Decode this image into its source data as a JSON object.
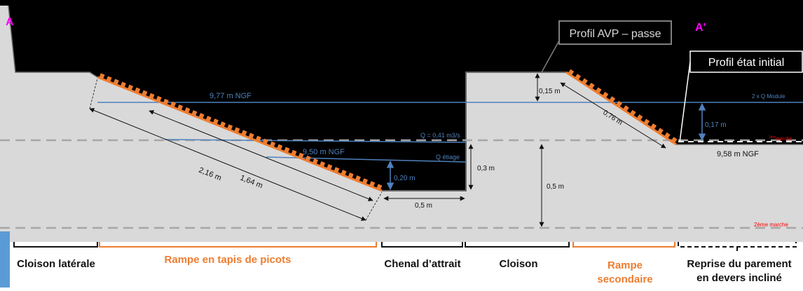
{
  "colors": {
    "sky": "#000000",
    "ground": "#d9d9d9",
    "water": "#4f81bd",
    "ramp": "#ed7d31",
    "dim": "#333333",
    "dashed": "#a6a6a6",
    "label_dark": "#111111",
    "magenta": "#ff00ff",
    "red": "#ff0000"
  },
  "corners": {
    "left": "A",
    "right": "A'"
  },
  "profiles": {
    "avp": "Profil AVP – passe",
    "initial": "Profil état initial"
  },
  "water_labels": {
    "ngf_977": "9,77 m NGF",
    "q_041": "Q = 0,41 m3/s",
    "ngf_950": "9,50 m NGF",
    "q_etiage": "Q étiage",
    "q_module": "2 x Q Module",
    "marche1_sup": "1ère",
    "marche1": "marche",
    "marche2": "2ème marche",
    "ngf_958": "9,58 m NGF"
  },
  "dimensions": {
    "d216": "2,16 m",
    "d164": "1,64 m",
    "d020": "0,20 m",
    "d05_bottom": "0,5 m",
    "d03": "0,3 m",
    "d05_right": "0,5 m",
    "d015": "0,15 m",
    "d076": "0,76 m",
    "d017": "0,17 m"
  },
  "sections": {
    "cloison_laterale": "Cloison latérale",
    "rampe_tapis": "Rampe en tapis de picots",
    "chenal": "Chenal d’attrait",
    "cloison": "Cloison",
    "rampe_sec_1": "Rampe",
    "rampe_sec_2": "secondaire",
    "reprise_1": "Reprise du parement",
    "reprise_2": "en devers incliné"
  }
}
